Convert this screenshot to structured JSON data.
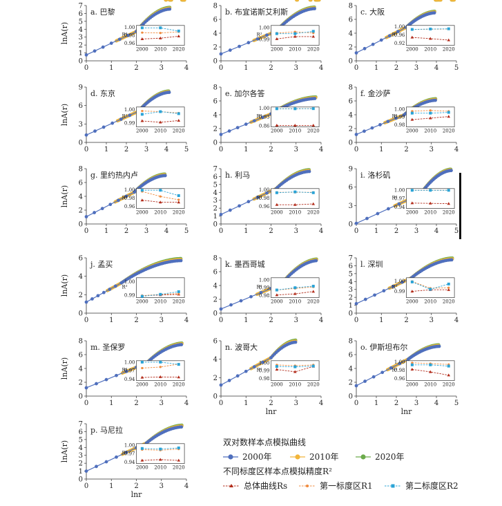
{
  "figure": {
    "y_axis_label": "lnA(r)",
    "x_axis_label": "lnr",
    "legend": {
      "curves_title": "双对数样本点模拟曲线",
      "year_items": [
        {
          "label": "2000年",
          "color": "#4f6fbd"
        },
        {
          "label": "2010年",
          "color": "#f2b53a"
        },
        {
          "label": "2020年",
          "color": "#6cab4c"
        }
      ],
      "accuracy_title": "不同标度区样本点模拟精度R²",
      "accuracy_items": [
        {
          "label": "总体曲线Rs",
          "color": "#b22b1a"
        },
        {
          "label": "第一标度区R1",
          "color": "#f08a3c"
        },
        {
          "label": "第二标度区R2",
          "color": "#2aa3d6"
        }
      ]
    }
  },
  "chart_data": [
    {
      "id": "a",
      "title": "a. 巴黎",
      "type": "scatter",
      "xlim": [
        0,
        4
      ],
      "ylim": [
        0,
        7
      ],
      "xticks": [
        0,
        1,
        2,
        3,
        4
      ],
      "yticks": [
        0,
        1,
        2,
        3,
        4,
        5,
        6,
        7
      ],
      "x_end": 3.35,
      "y_start": 0.75,
      "y_end": 6.55,
      "knee": 2.0,
      "inset": {
        "yticks": [
          "1.00",
          "0.98",
          "0.96"
        ],
        "ylim": [
          0.955,
          1.005
        ],
        "xticks": [
          "2000",
          "2010",
          "2020"
        ],
        "rs": [
          0.971,
          0.973,
          0.978
        ],
        "r1": [
          0.987,
          0.986,
          0.989
        ],
        "r2": [
          0.999,
          0.999,
          0.991
        ]
      }
    },
    {
      "id": "b",
      "title": "b. 布宜诺斯艾利斯",
      "type": "scatter",
      "xlim": [
        0,
        4
      ],
      "ylim": [
        0,
        8
      ],
      "xticks": [
        0,
        1,
        2,
        3,
        4
      ],
      "yticks": [
        0,
        2,
        4,
        6,
        8
      ],
      "x_end": 3.75,
      "y_start": 1.0,
      "y_end": 7.55,
      "knee": 2.2,
      "inset": {
        "yticks": [
          "1.00",
          "0.99"
        ],
        "ylim": [
          0.985,
          1.002
        ],
        "xticks": [
          "2000",
          "2010",
          "2020"
        ],
        "rs": [
          0.9905,
          0.9925,
          0.9925
        ],
        "r1": [
          0.9955,
          0.9965,
          0.9955
        ],
        "r2": [
          0.995,
          0.995,
          0.997
        ]
      }
    },
    {
      "id": "c",
      "title": "c. 大阪",
      "type": "scatter",
      "xlim": [
        0,
        5
      ],
      "ylim": [
        0,
        8
      ],
      "xticks": [
        0,
        1,
        2,
        3,
        4,
        5
      ],
      "yticks": [
        0,
        2,
        4,
        6,
        8
      ],
      "x_end": 3.95,
      "y_start": 1.15,
      "y_end": 6.95,
      "knee": 2.5,
      "inset": {
        "yticks": [
          "1.00",
          "0.96",
          "0.92"
        ],
        "ylim": [
          0.91,
          1.005
        ],
        "xticks": [
          "2000",
          "2010",
          "2020"
        ],
        "rs": [
          0.948,
          0.942,
          0.935
        ],
        "r1": [
          0.986,
          0.987,
          0.988
        ],
        "r2": [
          0.986,
          0.988,
          0.989
        ]
      }
    },
    {
      "id": "d",
      "title": "d. 东京",
      "type": "scatter",
      "xlim": [
        0,
        5
      ],
      "ylim": [
        0,
        9
      ],
      "xticks": [
        0,
        1,
        2,
        3,
        4,
        5
      ],
      "yticks": [
        0,
        3,
        6,
        9
      ],
      "x_end": 4.15,
      "y_start": 1.2,
      "y_end": 8.15,
      "knee": 2.6,
      "inset": {
        "yticks": [
          "1.00",
          "0.99"
        ],
        "ylim": [
          0.987,
          1.002
        ],
        "xticks": [
          "2000",
          "2010",
          "2020"
        ],
        "rs": [
          0.9915,
          0.9905,
          0.9918
        ],
        "r1": [
          0.999,
          0.9985,
          0.9975
        ],
        "r2": [
          0.9965,
          0.9985,
          0.997
        ]
      }
    },
    {
      "id": "e",
      "title": "e. 加尔各答",
      "type": "scatter",
      "xlim": [
        0,
        4
      ],
      "ylim": [
        0,
        8
      ],
      "xticks": [
        0,
        1,
        2,
        3,
        4
      ],
      "yticks": [
        0,
        2,
        4,
        6,
        8
      ],
      "x_end": 3.8,
      "y_start": 1.15,
      "y_end": 6.35,
      "knee": 2.0,
      "inset": {
        "yticks": [
          "1.00",
          "0.93",
          "0.86"
        ],
        "ylim": [
          0.85,
          1.01
        ],
        "xticks": [
          "2000",
          "2010",
          "2020"
        ],
        "rs": [
          0.862,
          0.862,
          0.862
        ],
        "r1": [
          0.996,
          0.996,
          0.997
        ],
        "r2": [
          0.996,
          0.996,
          0.997
        ]
      }
    },
    {
      "id": "f",
      "title": "f. 金沙萨",
      "type": "scatter",
      "xlim": [
        0,
        4
      ],
      "ylim": [
        0,
        8
      ],
      "xticks": [
        0,
        1,
        2,
        3,
        4
      ],
      "yticks": [
        0,
        2,
        4,
        6,
        8
      ],
      "x_end": 3.2,
      "y_start": 1.15,
      "y_end": 6.1,
      "knee": 1.9,
      "inset": {
        "yticks": [
          "1.00",
          "0.99",
          "0.98"
        ],
        "ylim": [
          0.977,
          1.003
        ],
        "xticks": [
          "2000",
          "2010",
          "2020"
        ],
        "rs": [
          0.9865,
          0.9885,
          0.9905
        ],
        "r1": [
          0.9975,
          0.9985,
          0.9975
        ],
        "r2": [
          0.995,
          0.995,
          0.996
        ]
      }
    },
    {
      "id": "g",
      "title": "g. 里约热内卢",
      "type": "scatter",
      "xlim": [
        0,
        5
      ],
      "ylim": [
        0,
        8
      ],
      "xticks": [
        0,
        1,
        2,
        3,
        4,
        5
      ],
      "yticks": [
        0,
        2,
        4,
        6,
        8
      ],
      "x_end": 3.95,
      "y_start": 1.05,
      "y_end": 7.0,
      "knee": 2.4,
      "inset": {
        "yticks": [
          "1.00",
          "0.98",
          "0.96"
        ],
        "ylim": [
          0.955,
          1.003
        ],
        "xticks": [
          "2000",
          "2010",
          "2020"
        ],
        "rs": [
          0.975,
          0.97,
          0.97
        ],
        "r1": [
          0.996,
          0.984,
          0.976
        ],
        "r2": [
          0.999,
          0.999,
          0.986
        ]
      }
    },
    {
      "id": "h",
      "title": "h. 利马",
      "type": "scatter",
      "xlim": [
        0,
        4
      ],
      "ylim": [
        0,
        7
      ],
      "xticks": [
        0,
        1,
        2,
        3,
        4
      ],
      "yticks": [
        0,
        1,
        2,
        3,
        4,
        5,
        6,
        7
      ],
      "x_end": 3.55,
      "y_start": 1.2,
      "y_end": 6.65,
      "knee": 2.2,
      "inset": {
        "yticks": [
          "1.00",
          "0.98",
          "0.96"
        ],
        "ylim": [
          0.955,
          1.003
        ],
        "xticks": [
          "2000",
          "2010",
          "2020"
        ],
        "rs": [
          0.964,
          0.964,
          0.966
        ],
        "r1": [
          0.994,
          0.994,
          0.994
        ],
        "r2": [
          0.993,
          0.995,
          0.993
        ]
      }
    },
    {
      "id": "i",
      "title": "i. 洛杉矶",
      "type": "scatter",
      "xlim": [
        0,
        5
      ],
      "ylim": [
        0,
        9
      ],
      "xticks": [
        0,
        1,
        2,
        3,
        4,
        5
      ],
      "yticks": [
        0,
        3,
        6,
        9
      ],
      "x_end": 4.75,
      "y_start": 0.1,
      "y_end": 8.7,
      "knee": 3.2,
      "inset": {
        "yticks": [
          "1.00",
          "0.97",
          "0.94"
        ],
        "ylim": [
          0.935,
          1.005
        ],
        "xticks": [
          "2000",
          "2010",
          "2020"
        ],
        "rs": [
          0.954,
          0.953,
          0.952
        ],
        "r1": [
          0.999,
          0.999,
          0.999
        ],
        "r2": [
          0.999,
          0.999,
          0.999
        ]
      }
    },
    {
      "id": "j",
      "title": "j. 孟买",
      "type": "scatter",
      "xlim": [
        0,
        4
      ],
      "ylim": [
        0,
        6
      ],
      "xticks": [
        0,
        1,
        2,
        3,
        4
      ],
      "yticks": [
        0,
        2,
        4,
        6
      ],
      "x_end": 3.8,
      "y_start": 1.2,
      "y_end": 5.7,
      "knee": 1.4,
      "inset": {
        "yticks": [
          "1.00",
          "0.99"
        ],
        "ylim": [
          0.988,
          1.003
        ],
        "xticks": [
          "2000",
          "2010",
          "2020"
        ],
        "rs": [
          0.9895,
          0.99,
          0.9905
        ],
        "r1": [
          0.9895,
          0.9905,
          0.991
        ],
        "r2": [
          0.989,
          0.9905,
          0.9925
        ]
      }
    },
    {
      "id": "k",
      "title": "k. 墨西哥城",
      "type": "scatter",
      "xlim": [
        0,
        4
      ],
      "ylim": [
        0,
        8
      ],
      "xticks": [
        0,
        1,
        2,
        3,
        4
      ],
      "yticks": [
        0,
        2,
        4,
        6,
        8
      ],
      "x_end": 3.85,
      "y_start": 0.6,
      "y_end": 7.6,
      "knee": 2.4,
      "inset": {
        "yticks": [
          "1.00",
          "0.99",
          "0.98"
        ],
        "ylim": [
          0.977,
          1.003
        ],
        "xticks": [
          "2000",
          "2010",
          "2020"
        ],
        "rs": [
          0.9805,
          0.982,
          0.985
        ],
        "r1": [
          0.987,
          0.989,
          0.991
        ],
        "r2": [
          0.987,
          0.99,
          0.992
        ]
      }
    },
    {
      "id": "l",
      "title": "l. 深圳",
      "type": "scatter",
      "xlim": [
        0,
        4
      ],
      "ylim": [
        0,
        7
      ],
      "xticks": [
        0,
        1,
        2,
        3,
        4
      ],
      "yticks": [
        0,
        1,
        2,
        3,
        4,
        5,
        6,
        7
      ],
      "x_end": 3.85,
      "y_start": 1.2,
      "y_end": 6.75,
      "knee": 2.2,
      "inset": {
        "yticks": [
          "1.00",
          "0.99"
        ],
        "ylim": [
          0.984,
          1.003
        ],
        "xticks": [
          "2000",
          "2010",
          "2020"
        ],
        "rs": [
          0.99,
          0.9915,
          0.9915
        ],
        "r1": [
          0.9995,
          0.993,
          0.9935
        ],
        "r2": [
          0.999,
          0.992,
          0.997
        ]
      }
    },
    {
      "id": "m",
      "title": "m. 圣保罗",
      "type": "scatter",
      "xlim": [
        0,
        4
      ],
      "ylim": [
        0,
        8
      ],
      "xticks": [
        0,
        1,
        2,
        3,
        4
      ],
      "yticks": [
        0,
        2,
        4,
        6,
        8
      ],
      "x_end": 3.85,
      "y_start": 1.2,
      "y_end": 7.45,
      "knee": 2.4,
      "inset": {
        "yticks": [
          "1.00",
          "0.97",
          "0.94"
        ],
        "ylim": [
          0.935,
          1.005
        ],
        "xticks": [
          "2000",
          "2010",
          "2020"
        ],
        "rs": [
          0.946,
          0.948,
          0.947
        ],
        "r1": [
          0.979,
          0.983,
          0.993
        ],
        "r2": [
          1.0,
          1.0,
          0.992
        ]
      }
    },
    {
      "id": "n",
      "title": "n. 波哥大",
      "type": "scatter",
      "xlim": [
        0,
        4
      ],
      "ylim": [
        0,
        6
      ],
      "xticks": [
        0,
        1,
        2,
        3,
        4
      ],
      "yticks": [
        0,
        2,
        4,
        6
      ],
      "x_end": 3.0,
      "y_start": 1.2,
      "y_end": 5.85,
      "knee": 2.0,
      "inset": {
        "yticks": [
          "1.00",
          "0.99",
          "0.98"
        ],
        "ylim": [
          0.977,
          1.003
        ],
        "xticks": [
          "2000",
          "2010",
          "2020"
        ],
        "rs": [
          0.9915,
          0.9885,
          0.9955
        ],
        "r1": [
          0.9975,
          0.9965,
          0.9975
        ],
        "r2": [
          0.9955,
          0.995,
          0.996
        ]
      }
    },
    {
      "id": "o",
      "title": "o. 伊斯坦布尔",
      "type": "scatter",
      "xlim": [
        0,
        5
      ],
      "ylim": [
        0,
        8
      ],
      "xticks": [
        0,
        1,
        2,
        3,
        4,
        5
      ],
      "yticks": [
        0,
        2,
        4,
        6,
        8
      ],
      "x_end": 4.15,
      "y_start": 1.5,
      "y_end": 7.2,
      "knee": 2.6,
      "inset": {
        "yticks": [
          "1.00",
          "0.98",
          "0.96"
        ],
        "ylim": [
          0.955,
          1.003
        ],
        "xticks": [
          "2000",
          "2010",
          "2020"
        ],
        "rs": [
          0.982,
          0.976,
          0.968
        ],
        "r1": [
          0.998,
          0.996,
          0.994
        ],
        "r2": [
          0.993,
          0.993,
          0.99
        ]
      }
    },
    {
      "id": "p",
      "title": "p. 马尼拉",
      "type": "scatter",
      "xlim": [
        0,
        4
      ],
      "ylim": [
        0,
        7
      ],
      "xticks": [
        0,
        1,
        2,
        3,
        4
      ],
      "yticks": [
        0,
        1,
        2,
        3,
        4,
        5,
        6,
        7
      ],
      "x_end": 3.85,
      "y_start": 1.0,
      "y_end": 6.6,
      "knee": 2.4,
      "inset": {
        "yticks": [
          "1.00",
          "0.97",
          "0.94"
        ],
        "ylim": [
          0.935,
          1.005
        ],
        "xticks": [
          "2000",
          "2010",
          "2020"
        ],
        "rs": [
          0.946,
          0.949,
          0.946
        ],
        "r1": [
          0.984,
          0.982,
          0.986
        ],
        "r2": [
          0.988,
          0.986,
          0.99
        ]
      }
    }
  ]
}
